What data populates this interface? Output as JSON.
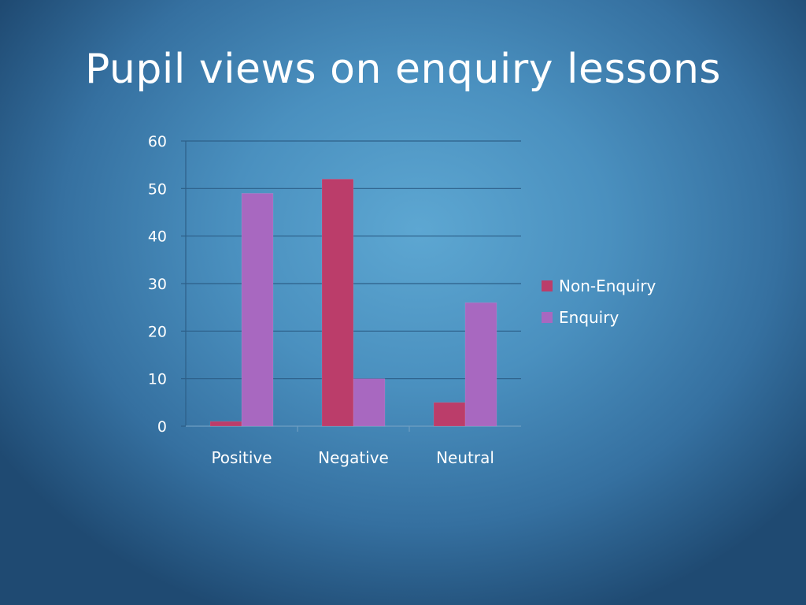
{
  "slide": {
    "title": "Pupil views on enquiry lessons"
  },
  "chart_data": {
    "type": "bar",
    "categories": [
      "Positive",
      "Negative",
      "Neutral"
    ],
    "series": [
      {
        "name": "Non-Enquiry",
        "values": [
          1,
          52,
          5
        ],
        "color": "#bb3d6a"
      },
      {
        "name": "Enquiry",
        "values": [
          49,
          10,
          26
        ],
        "color": "#a868c0"
      }
    ],
    "ylim": [
      0,
      60
    ],
    "yticks": [
      0,
      10,
      20,
      30,
      40,
      50,
      60
    ],
    "grid": true,
    "legend": "right",
    "gridline_color": "#2d5f88"
  }
}
